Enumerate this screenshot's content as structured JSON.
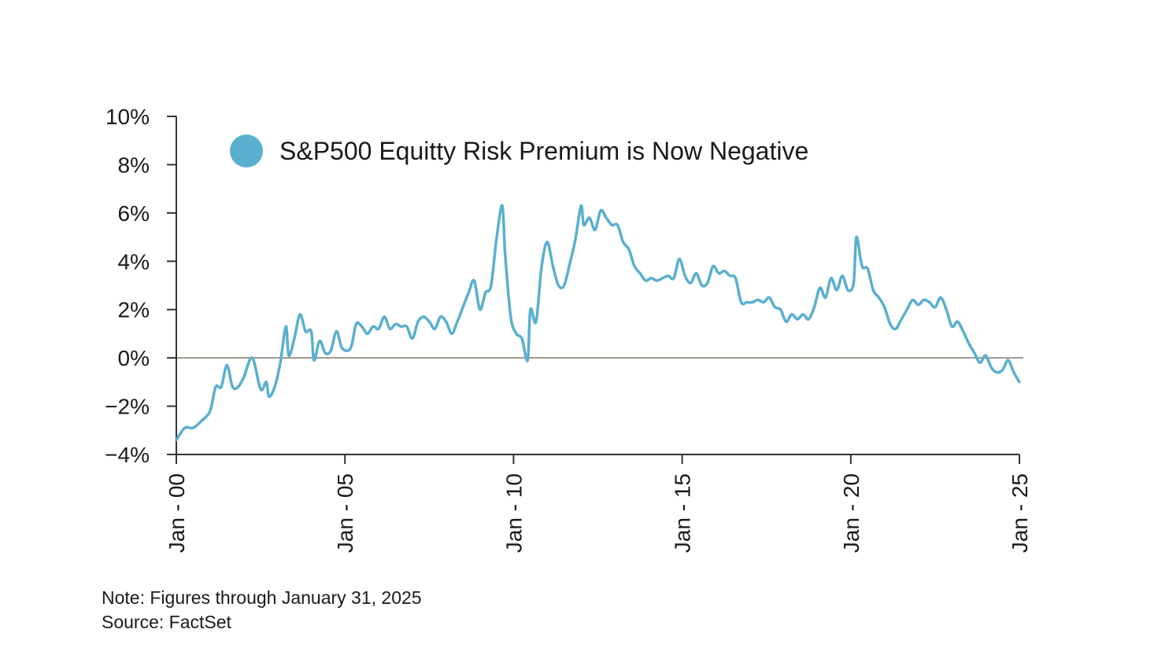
{
  "chart_data": {
    "type": "line",
    "legend": {
      "label": "S&P500 Equitty Risk Premium is Now Negative",
      "placement": "top-left",
      "color": "#5AAFCF"
    },
    "colors": {
      "line": "#5AAFCF",
      "zero_line": "#9E948B",
      "axis": "#333333"
    },
    "xlabel": "",
    "ylabel": "",
    "x_ticks": [
      "Jan - 00",
      "Jan - 05",
      "Jan - 10",
      "Jan - 15",
      "Jan - 20",
      "Jan - 25"
    ],
    "y_ticks": [
      "10%",
      "8%",
      "6%",
      "4%",
      "2%",
      "0%",
      "−2%",
      "−4%"
    ],
    "ylim": [
      -4,
      10
    ],
    "xlim": [
      "2000-01",
      "2025-01"
    ],
    "grid": false,
    "series": [
      {
        "values": [
          [
            "2000-01",
            -3.4
          ],
          [
            "2000-04",
            -2.9
          ],
          [
            "2000-07",
            -2.9
          ],
          [
            "2000-10",
            -2.6
          ],
          [
            "2001-01",
            -2.2
          ],
          [
            "2001-03",
            -1.2
          ],
          [
            "2001-05",
            -1.2
          ],
          [
            "2001-07",
            -0.3
          ],
          [
            "2001-09",
            -1.2
          ],
          [
            "2001-11",
            -1.2
          ],
          [
            "2002-01",
            -0.8
          ],
          [
            "2002-04",
            0.0
          ],
          [
            "2002-07",
            -1.3
          ],
          [
            "2002-09",
            -1.0
          ],
          [
            "2002-10",
            -1.6
          ],
          [
            "2002-12",
            -1.2
          ],
          [
            "2003-02",
            -0.2
          ],
          [
            "2003-04",
            1.3
          ],
          [
            "2003-05",
            0.1
          ],
          [
            "2003-07",
            0.8
          ],
          [
            "2003-09",
            1.8
          ],
          [
            "2003-11",
            1.1
          ],
          [
            "2004-01",
            1.1
          ],
          [
            "2004-02",
            -0.1
          ],
          [
            "2004-04",
            0.7
          ],
          [
            "2004-06",
            0.2
          ],
          [
            "2004-08",
            0.3
          ],
          [
            "2004-10",
            1.1
          ],
          [
            "2004-12",
            0.4
          ],
          [
            "2005-03",
            0.4
          ],
          [
            "2005-05",
            1.4
          ],
          [
            "2005-07",
            1.3
          ],
          [
            "2005-09",
            1.0
          ],
          [
            "2005-11",
            1.3
          ],
          [
            "2006-01",
            1.2
          ],
          [
            "2006-03",
            1.7
          ],
          [
            "2006-05",
            1.2
          ],
          [
            "2006-07",
            1.4
          ],
          [
            "2006-09",
            1.3
          ],
          [
            "2006-11",
            1.3
          ],
          [
            "2007-01",
            0.8
          ],
          [
            "2007-03",
            1.5
          ],
          [
            "2007-05",
            1.7
          ],
          [
            "2007-07",
            1.5
          ],
          [
            "2007-09",
            1.2
          ],
          [
            "2007-11",
            1.7
          ],
          [
            "2008-01",
            1.5
          ],
          [
            "2008-03",
            1.0
          ],
          [
            "2008-05",
            1.5
          ],
          [
            "2008-07",
            2.1
          ],
          [
            "2008-09",
            2.7
          ],
          [
            "2008-11",
            3.2
          ],
          [
            "2009-01",
            2.0
          ],
          [
            "2009-03",
            2.7
          ],
          [
            "2009-05",
            3.0
          ],
          [
            "2009-07",
            5.0
          ],
          [
            "2009-09",
            6.3
          ],
          [
            "2009-10",
            4.3
          ],
          [
            "2009-12",
            1.7
          ],
          [
            "2010-02",
            1.0
          ],
          [
            "2010-04",
            0.8
          ],
          [
            "2010-06",
            -0.1
          ],
          [
            "2010-07",
            2.0
          ],
          [
            "2010-09",
            1.5
          ],
          [
            "2010-11",
            3.8
          ],
          [
            "2011-01",
            4.8
          ],
          [
            "2011-03",
            3.8
          ],
          [
            "2011-05",
            3.0
          ],
          [
            "2011-07",
            3.0
          ],
          [
            "2011-09",
            3.9
          ],
          [
            "2011-11",
            4.9
          ],
          [
            "2012-01",
            6.3
          ],
          [
            "2012-02",
            5.5
          ],
          [
            "2012-04",
            5.8
          ],
          [
            "2012-06",
            5.3
          ],
          [
            "2012-08",
            6.1
          ],
          [
            "2012-10",
            5.8
          ],
          [
            "2012-12",
            5.5
          ],
          [
            "2013-02",
            5.5
          ],
          [
            "2013-04",
            4.8
          ],
          [
            "2013-06",
            4.5
          ],
          [
            "2013-08",
            3.8
          ],
          [
            "2013-10",
            3.5
          ],
          [
            "2013-12",
            3.2
          ],
          [
            "2014-02",
            3.3
          ],
          [
            "2014-04",
            3.2
          ],
          [
            "2014-06",
            3.3
          ],
          [
            "2014-08",
            3.4
          ],
          [
            "2014-10",
            3.3
          ],
          [
            "2014-12",
            4.1
          ],
          [
            "2015-02",
            3.4
          ],
          [
            "2015-04",
            3.1
          ],
          [
            "2015-06",
            3.5
          ],
          [
            "2015-08",
            3.0
          ],
          [
            "2015-10",
            3.1
          ],
          [
            "2015-12",
            3.8
          ],
          [
            "2016-02",
            3.5
          ],
          [
            "2016-04",
            3.6
          ],
          [
            "2016-06",
            3.4
          ],
          [
            "2016-08",
            3.3
          ],
          [
            "2016-10",
            2.3
          ],
          [
            "2016-12",
            2.3
          ],
          [
            "2017-02",
            2.3
          ],
          [
            "2017-04",
            2.4
          ],
          [
            "2017-06",
            2.3
          ],
          [
            "2017-08",
            2.5
          ],
          [
            "2017-10",
            2.1
          ],
          [
            "2017-12",
            2.0
          ],
          [
            "2018-02",
            1.5
          ],
          [
            "2018-04",
            1.8
          ],
          [
            "2018-06",
            1.6
          ],
          [
            "2018-08",
            1.8
          ],
          [
            "2018-10",
            1.6
          ],
          [
            "2018-12",
            2.1
          ],
          [
            "2019-02",
            2.9
          ],
          [
            "2019-04",
            2.5
          ],
          [
            "2019-06",
            3.3
          ],
          [
            "2019-08",
            2.8
          ],
          [
            "2019-10",
            3.4
          ],
          [
            "2019-12",
            2.8
          ],
          [
            "2020-02",
            3.1
          ],
          [
            "2020-03",
            5.0
          ],
          [
            "2020-05",
            3.8
          ],
          [
            "2020-07",
            3.7
          ],
          [
            "2020-09",
            2.8
          ],
          [
            "2020-11",
            2.5
          ],
          [
            "2021-01",
            2.1
          ],
          [
            "2021-03",
            1.4
          ],
          [
            "2021-05",
            1.2
          ],
          [
            "2021-07",
            1.6
          ],
          [
            "2021-09",
            2.0
          ],
          [
            "2021-11",
            2.4
          ],
          [
            "2022-01",
            2.2
          ],
          [
            "2022-03",
            2.4
          ],
          [
            "2022-05",
            2.3
          ],
          [
            "2022-07",
            2.1
          ],
          [
            "2022-09",
            2.5
          ],
          [
            "2022-11",
            2.0
          ],
          [
            "2023-01",
            1.3
          ],
          [
            "2023-03",
            1.5
          ],
          [
            "2023-05",
            1.1
          ],
          [
            "2023-07",
            0.6
          ],
          [
            "2023-09",
            0.2
          ],
          [
            "2023-11",
            -0.2
          ],
          [
            "2024-01",
            0.1
          ],
          [
            "2024-03",
            -0.4
          ],
          [
            "2024-05",
            -0.6
          ],
          [
            "2024-07",
            -0.5
          ],
          [
            "2024-09",
            -0.1
          ],
          [
            "2024-11",
            -0.6
          ],
          [
            "2025-01",
            -1.0
          ]
        ]
      }
    ]
  },
  "notes": {
    "note": "Note: Figures through January 31, 2025",
    "source": "Source: FactSet"
  }
}
